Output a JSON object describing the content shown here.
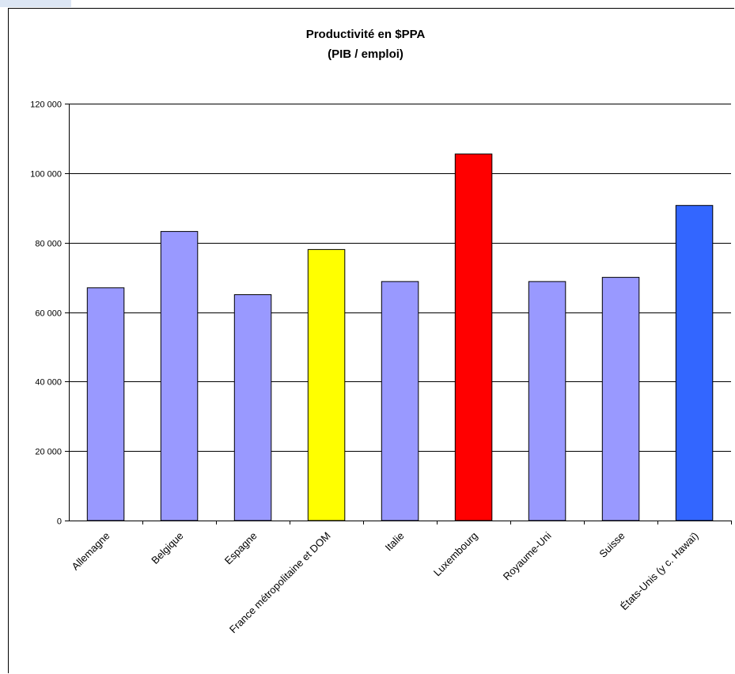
{
  "chart_data": {
    "type": "bar",
    "title_line1": "Productivité en $PPA",
    "title_line2": "(PIB / emploi)",
    "xlabel": "",
    "ylabel": "",
    "ylim": [
      0,
      120000
    ],
    "yticks": [
      0,
      20000,
      40000,
      60000,
      80000,
      100000,
      120000
    ],
    "ytick_labels": [
      "0",
      "20 000",
      "40 000",
      "60 000",
      "80 000",
      "100 000",
      "120 000"
    ],
    "grid": true,
    "legend": "none",
    "categories": [
      "Allemagne",
      "Belgique",
      "Espagne",
      "France métropolitaine et DOM",
      "Italie",
      "Luxembourg",
      "Royaume-Uni",
      "Suisse",
      "États-Unis (y c. Hawaï)"
    ],
    "values": [
      67000,
      83200,
      65000,
      78000,
      68800,
      105500,
      68800,
      70000,
      90700
    ],
    "colors": [
      "#9999ff",
      "#9999ff",
      "#9999ff",
      "#ffff00",
      "#9999ff",
      "#ff0000",
      "#9999ff",
      "#9999ff",
      "#3366ff"
    ]
  }
}
